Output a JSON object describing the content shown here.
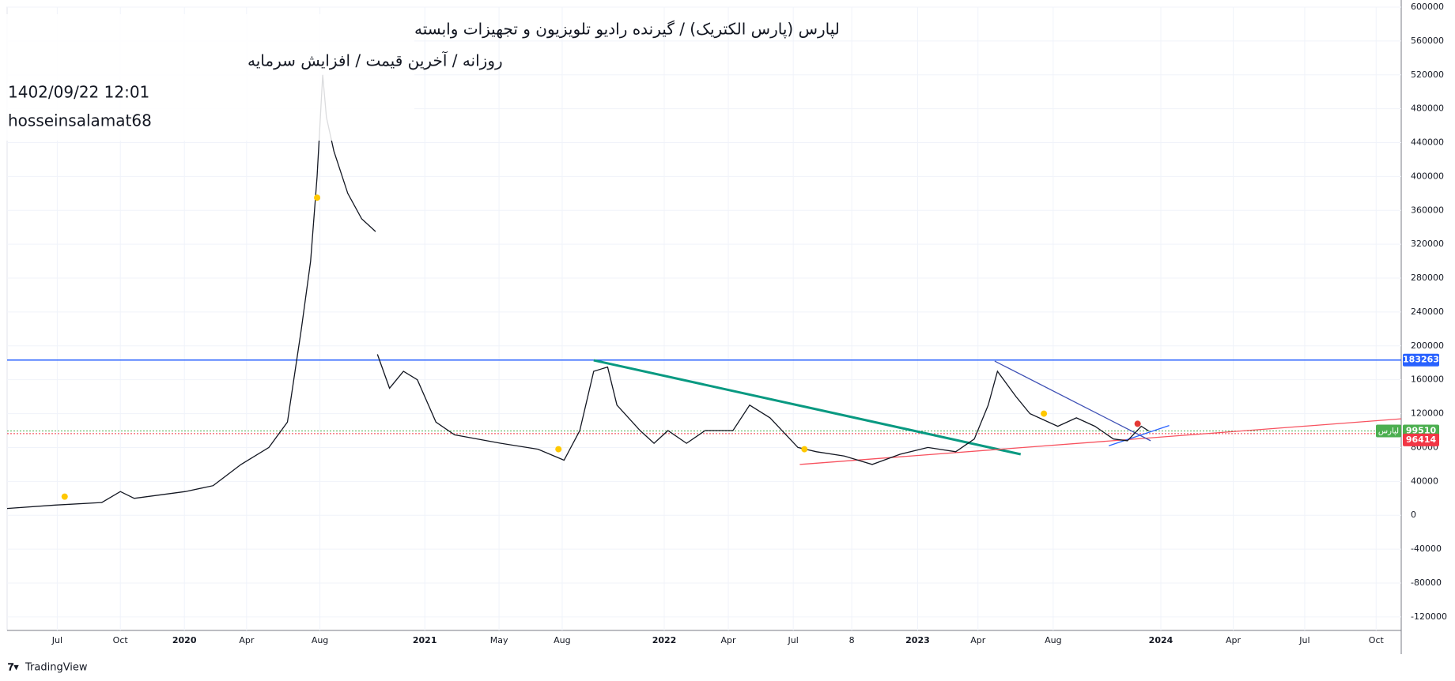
{
  "chart_data": {
    "type": "line",
    "title": "لپارس (پارس الکتریک) / گیرنده رادیو تلویزیون و تجهیزات وابسته",
    "subtitle": "روزانه / آخرین قیمت / افزایش سرمایه",
    "date": "1402/09/22 12:01",
    "author": "hosseinsalamat68",
    "brand": "TradingView",
    "x": [
      8,
      60,
      110,
      130,
      145,
      200,
      230,
      260,
      290,
      310,
      325,
      335,
      342,
      348,
      352,
      360,
      375,
      390,
      405,
      406,
      407,
      420,
      435,
      450,
      470,
      490,
      540,
      580,
      608,
      625,
      640,
      655,
      665,
      690,
      705,
      720,
      740,
      760,
      790,
      808,
      830,
      860,
      880,
      910,
      940,
      970,
      1000,
      1030,
      1050,
      1065,
      1075,
      1085,
      1095,
      1110,
      1140,
      1160,
      1180,
      1200,
      1215,
      1230,
      1238
    ],
    "series": [
      {
        "name": "لپارس",
        "color": "#131722",
        "values": [
          8000,
          12000,
          15000,
          28000,
          20000,
          28000,
          35000,
          60000,
          80000,
          110000,
          220000,
          300000,
          400000,
          520000,
          470000,
          430000,
          380000,
          350000,
          335000,
          null,
          190000,
          150000,
          170000,
          160000,
          110000,
          95000,
          85000,
          78000,
          65000,
          100000,
          170000,
          175000,
          130000,
          100000,
          85000,
          100000,
          85000,
          100000,
          100000,
          130000,
          115000,
          80000,
          75000,
          70000,
          60000,
          72000,
          80000,
          75000,
          90000,
          130000,
          170000,
          155000,
          140000,
          120000,
          105000,
          115000,
          105000,
          90000,
          88000,
          105000,
          99510
        ]
      }
    ],
    "xlim": [
      8,
      1510
    ],
    "xticks": [
      {
        "value": 62,
        "label": "Jul"
      },
      {
        "value": 130,
        "label": "Oct"
      },
      {
        "value": 199,
        "label": "2020"
      },
      {
        "value": 266,
        "label": "Apr"
      },
      {
        "value": 345,
        "label": "Aug"
      },
      {
        "value": 458,
        "label": "2021"
      },
      {
        "value": 538,
        "label": "May"
      },
      {
        "value": 606,
        "label": "Aug"
      },
      {
        "value": 716,
        "label": "2022"
      },
      {
        "value": 785,
        "label": "Apr"
      },
      {
        "value": 855,
        "label": "Jul"
      },
      {
        "value": 918,
        "label": "8"
      },
      {
        "value": 989,
        "label": "2023"
      },
      {
        "value": 1054,
        "label": "Apr"
      },
      {
        "value": 1135,
        "label": "Aug"
      },
      {
        "value": 1251,
        "label": "2024"
      },
      {
        "value": 1329,
        "label": "Apr"
      },
      {
        "value": 1406,
        "label": "Jul"
      },
      {
        "value": 1483,
        "label": "Oct"
      }
    ],
    "ylim": [
      -136000,
      600000
    ],
    "yticks": [
      -120000,
      -80000,
      -40000,
      0,
      40000,
      80000,
      120000,
      160000,
      200000,
      240000,
      280000,
      320000,
      360000,
      400000,
      440000,
      480000,
      520000,
      560000,
      600000
    ],
    "grid": true,
    "hlines": [
      {
        "value": 183263,
        "color": "#2962ff"
      },
      {
        "value": 99510,
        "color": "#4caf50",
        "name": "لپارس"
      },
      {
        "value": 96414,
        "color": "#f23645"
      }
    ],
    "trendlines": [
      {
        "color": "#089981",
        "x": [
          640,
          1100
        ],
        "y": [
          183000,
          72000
        ]
      },
      {
        "color": "#f7525f",
        "x": [
          862,
          1560
        ],
        "y": [
          60000,
          118000
        ]
      },
      {
        "color": "#3f51b5",
        "x": [
          1072,
          1240
        ],
        "y": [
          182000,
          88000
        ]
      },
      {
        "color": "#2962ff",
        "x": [
          1195,
          1260
        ],
        "y": [
          82000,
          106000
        ]
      }
    ],
    "markers": [
      {
        "color": "#ffc800",
        "x": [
          70,
          342,
          602,
          867,
          1125
        ],
        "y": [
          22000,
          375000,
          78000,
          78000,
          120000
        ]
      },
      {
        "color": "#e53935",
        "x": [
          1226
        ],
        "y": [
          108000
        ]
      }
    ]
  }
}
